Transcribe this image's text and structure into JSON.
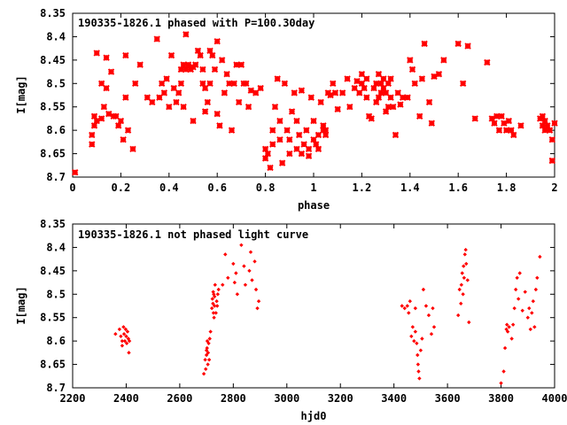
{
  "chart_data": [
    {
      "type": "scatter",
      "title": "190335-1826.1 phased with P=100.30day",
      "xlabel": "phase",
      "ylabel": "I[mag]",
      "xlim": [
        0,
        2
      ],
      "ylim": [
        8.35,
        8.7
      ],
      "y_inverted": true,
      "grid": false,
      "marker": "star",
      "color": "#ff0000",
      "xticks": [
        "0",
        "0.2",
        "0.4",
        "0.6",
        "0.8",
        "1",
        "1.2",
        "1.4",
        "1.6",
        "1.8",
        "2"
      ],
      "yticks": [
        "8.35",
        "8.4",
        "8.45",
        "8.5",
        "8.55",
        "8.6",
        "8.65",
        "8.7"
      ],
      "points": [
        [
          0.01,
          8.69
        ],
        [
          0.08,
          8.63
        ],
        [
          0.08,
          8.61
        ],
        [
          0.09,
          8.59
        ],
        [
          0.09,
          8.57
        ],
        [
          0.1,
          8.58
        ],
        [
          0.1,
          8.435
        ],
        [
          0.12,
          8.5
        ],
        [
          0.12,
          8.575
        ],
        [
          0.13,
          8.55
        ],
        [
          0.14,
          8.445
        ],
        [
          0.14,
          8.51
        ],
        [
          0.15,
          8.565
        ],
        [
          0.16,
          8.475
        ],
        [
          0.17,
          8.57
        ],
        [
          0.18,
          8.57
        ],
        [
          0.19,
          8.59
        ],
        [
          0.2,
          8.58
        ],
        [
          0.21,
          8.62
        ],
        [
          0.22,
          8.44
        ],
        [
          0.22,
          8.53
        ],
        [
          0.23,
          8.6
        ],
        [
          0.25,
          8.64
        ],
        [
          0.26,
          8.5
        ],
        [
          0.28,
          8.46
        ],
        [
          0.31,
          8.53
        ],
        [
          0.33,
          8.54
        ],
        [
          0.35,
          8.405
        ],
        [
          0.36,
          8.53
        ],
        [
          0.37,
          8.5
        ],
        [
          0.38,
          8.52
        ],
        [
          0.39,
          8.49
        ],
        [
          0.4,
          8.55
        ],
        [
          0.41,
          8.44
        ],
        [
          0.42,
          8.51
        ],
        [
          0.43,
          8.54
        ],
        [
          0.44,
          8.52
        ],
        [
          0.45,
          8.47
        ],
        [
          0.45,
          8.5
        ],
        [
          0.46,
          8.46
        ],
        [
          0.46,
          8.55
        ],
        [
          0.47,
          8.395
        ],
        [
          0.47,
          8.47
        ],
        [
          0.48,
          8.46
        ],
        [
          0.49,
          8.47
        ],
        [
          0.5,
          8.465
        ],
        [
          0.5,
          8.58
        ],
        [
          0.51,
          8.46
        ],
        [
          0.52,
          8.43
        ],
        [
          0.53,
          8.44
        ],
        [
          0.54,
          8.47
        ],
        [
          0.54,
          8.5
        ],
        [
          0.55,
          8.51
        ],
        [
          0.55,
          8.56
        ],
        [
          0.56,
          8.54
        ],
        [
          0.57,
          8.43
        ],
        [
          0.57,
          8.5
        ],
        [
          0.58,
          8.44
        ],
        [
          0.59,
          8.47
        ],
        [
          0.6,
          8.41
        ],
        [
          0.6,
          8.565
        ],
        [
          0.61,
          8.59
        ],
        [
          0.62,
          8.45
        ],
        [
          0.63,
          8.52
        ],
        [
          0.64,
          8.48
        ],
        [
          0.65,
          8.5
        ],
        [
          0.66,
          8.6
        ],
        [
          0.67,
          8.5
        ],
        [
          0.68,
          8.46
        ],
        [
          0.69,
          8.54
        ],
        [
          0.7,
          8.46
        ],
        [
          0.71,
          8.5
        ],
        [
          0.72,
          8.5
        ],
        [
          0.73,
          8.55
        ],
        [
          0.74,
          8.515
        ],
        [
          0.76,
          8.52
        ],
        [
          0.78,
          8.51
        ],
        [
          0.8,
          8.64
        ],
        [
          0.8,
          8.66
        ],
        [
          0.81,
          8.65
        ],
        [
          0.82,
          8.68
        ],
        [
          0.83,
          8.6
        ],
        [
          0.83,
          8.63
        ],
        [
          0.84,
          8.55
        ],
        [
          0.85,
          8.49
        ],
        [
          0.86,
          8.58
        ],
        [
          0.86,
          8.62
        ],
        [
          0.87,
          8.67
        ],
        [
          0.88,
          8.5
        ],
        [
          0.89,
          8.6
        ],
        [
          0.9,
          8.62
        ],
        [
          0.9,
          8.65
        ],
        [
          0.91,
          8.56
        ],
        [
          0.92,
          8.52
        ],
        [
          0.93,
          8.58
        ],
        [
          0.93,
          8.64
        ],
        [
          0.94,
          8.61
        ],
        [
          0.95,
          8.515
        ],
        [
          0.95,
          8.65
        ],
        [
          0.96,
          8.63
        ],
        [
          0.97,
          8.6
        ],
        [
          0.98,
          8.64
        ],
        [
          0.98,
          8.655
        ],
        [
          0.99,
          8.53
        ],
        [
          1.0,
          8.58
        ],
        [
          1.0,
          8.62
        ],
        [
          1.01,
          8.63
        ],
        [
          1.02,
          8.61
        ],
        [
          1.02,
          8.64
        ],
        [
          1.03,
          8.54
        ],
        [
          1.04,
          8.59
        ],
        [
          1.04,
          8.6
        ],
        [
          1.05,
          8.6
        ],
        [
          1.05,
          8.61
        ],
        [
          1.06,
          8.52
        ],
        [
          1.07,
          8.525
        ],
        [
          1.08,
          8.5
        ],
        [
          1.09,
          8.52
        ],
        [
          1.1,
          8.555
        ],
        [
          1.12,
          8.52
        ],
        [
          1.14,
          8.49
        ],
        [
          1.15,
          8.55
        ],
        [
          1.17,
          8.51
        ],
        [
          1.18,
          8.495
        ],
        [
          1.19,
          8.52
        ],
        [
          1.2,
          8.48
        ],
        [
          1.2,
          8.5
        ],
        [
          1.21,
          8.51
        ],
        [
          1.22,
          8.49
        ],
        [
          1.22,
          8.53
        ],
        [
          1.23,
          8.57
        ],
        [
          1.24,
          8.575
        ],
        [
          1.25,
          8.51
        ],
        [
          1.26,
          8.5
        ],
        [
          1.26,
          8.54
        ],
        [
          1.27,
          8.53
        ],
        [
          1.27,
          8.48
        ],
        [
          1.28,
          8.5
        ],
        [
          1.28,
          8.52
        ],
        [
          1.29,
          8.51
        ],
        [
          1.29,
          8.49
        ],
        [
          1.3,
          8.56
        ],
        [
          1.3,
          8.52
        ],
        [
          1.31,
          8.55
        ],
        [
          1.31,
          8.5
        ],
        [
          1.32,
          8.53
        ],
        [
          1.32,
          8.49
        ],
        [
          1.33,
          8.55
        ],
        [
          1.34,
          8.61
        ],
        [
          1.35,
          8.52
        ],
        [
          1.36,
          8.545
        ],
        [
          1.37,
          8.53
        ],
        [
          1.39,
          8.53
        ],
        [
          1.4,
          8.45
        ],
        [
          1.41,
          8.47
        ],
        [
          1.42,
          8.5
        ],
        [
          1.44,
          8.57
        ],
        [
          1.45,
          8.49
        ],
        [
          1.46,
          8.415
        ],
        [
          1.48,
          8.54
        ],
        [
          1.49,
          8.585
        ],
        [
          1.5,
          8.485
        ],
        [
          1.52,
          8.48
        ],
        [
          1.54,
          8.45
        ],
        [
          1.6,
          8.415
        ],
        [
          1.62,
          8.5
        ],
        [
          1.64,
          8.42
        ],
        [
          1.67,
          8.575
        ],
        [
          1.72,
          8.455
        ],
        [
          1.74,
          8.575
        ],
        [
          1.75,
          8.585
        ],
        [
          1.76,
          8.57
        ],
        [
          1.77,
          8.6
        ],
        [
          1.78,
          8.57
        ],
        [
          1.79,
          8.585
        ],
        [
          1.8,
          8.6
        ],
        [
          1.81,
          8.58
        ],
        [
          1.82,
          8.6
        ],
        [
          1.83,
          8.61
        ],
        [
          1.86,
          8.59
        ],
        [
          1.94,
          8.575
        ],
        [
          1.95,
          8.57
        ],
        [
          1.95,
          8.59
        ],
        [
          1.96,
          8.58
        ],
        [
          1.96,
          8.6
        ],
        [
          1.97,
          8.59
        ],
        [
          1.98,
          8.6
        ],
        [
          1.99,
          8.62
        ],
        [
          1.99,
          8.665
        ],
        [
          2.0,
          8.585
        ]
      ]
    },
    {
      "type": "scatter",
      "title": "190335-1826.1 not phased light curve",
      "xlabel": "hjd0",
      "ylabel": "I[mag]",
      "xlim": [
        2200,
        4000
      ],
      "ylim": [
        8.35,
        8.7
      ],
      "y_inverted": true,
      "grid": false,
      "marker": "diamond",
      "color": "#ff0000",
      "xticks": [
        "2200",
        "2400",
        "2600",
        "2800",
        "3000",
        "3200",
        "3400",
        "3600",
        "3800",
        "4000"
      ],
      "yticks": [
        "8.35",
        "8.4",
        "8.45",
        "8.5",
        "8.55",
        "8.6",
        "8.65",
        "8.7"
      ],
      "points": [
        [
          2360,
          8.585
        ],
        [
          2375,
          8.575
        ],
        [
          2380,
          8.59
        ],
        [
          2385,
          8.6
        ],
        [
          2385,
          8.61
        ],
        [
          2390,
          8.57
        ],
        [
          2392,
          8.585
        ],
        [
          2395,
          8.6
        ],
        [
          2398,
          8.575
        ],
        [
          2400,
          8.59
        ],
        [
          2402,
          8.605
        ],
        [
          2405,
          8.58
        ],
        [
          2408,
          8.595
        ],
        [
          2410,
          8.625
        ],
        [
          2412,
          8.6
        ],
        [
          2690,
          8.67
        ],
        [
          2695,
          8.64
        ],
        [
          2697,
          8.66
        ],
        [
          2700,
          8.63
        ],
        [
          2700,
          8.62
        ],
        [
          2702,
          8.615
        ],
        [
          2703,
          8.6
        ],
        [
          2705,
          8.65
        ],
        [
          2706,
          8.625
        ],
        [
          2708,
          8.605
        ],
        [
          2710,
          8.64
        ],
        [
          2712,
          8.595
        ],
        [
          2715,
          8.58
        ],
        [
          2720,
          8.53
        ],
        [
          2722,
          8.51
        ],
        [
          2724,
          8.52
        ],
        [
          2725,
          8.495
        ],
        [
          2726,
          8.54
        ],
        [
          2727,
          8.5
        ],
        [
          2728,
          8.55
        ],
        [
          2730,
          8.505
        ],
        [
          2730,
          8.525
        ],
        [
          2732,
          8.48
        ],
        [
          2735,
          8.54
        ],
        [
          2738,
          8.515
        ],
        [
          2740,
          8.525
        ],
        [
          2742,
          8.5
        ],
        [
          2745,
          8.49
        ],
        [
          2760,
          8.48
        ],
        [
          2770,
          8.415
        ],
        [
          2780,
          8.465
        ],
        [
          2800,
          8.435
        ],
        [
          2805,
          8.475
        ],
        [
          2810,
          8.455
        ],
        [
          2815,
          8.5
        ],
        [
          2830,
          8.395
        ],
        [
          2840,
          8.44
        ],
        [
          2845,
          8.48
        ],
        [
          2860,
          8.45
        ],
        [
          2865,
          8.41
        ],
        [
          2870,
          8.47
        ],
        [
          2880,
          8.43
        ],
        [
          2885,
          8.49
        ],
        [
          2890,
          8.53
        ],
        [
          2895,
          8.515
        ],
        [
          3430,
          8.525
        ],
        [
          3440,
          8.53
        ],
        [
          3450,
          8.525
        ],
        [
          3455,
          8.54
        ],
        [
          3460,
          8.515
        ],
        [
          3465,
          8.59
        ],
        [
          3470,
          8.57
        ],
        [
          3475,
          8.6
        ],
        [
          3480,
          8.53
        ],
        [
          3480,
          8.58
        ],
        [
          3485,
          8.605
        ],
        [
          3488,
          8.63
        ],
        [
          3490,
          8.65
        ],
        [
          3492,
          8.665
        ],
        [
          3495,
          8.68
        ],
        [
          3500,
          8.62
        ],
        [
          3505,
          8.595
        ],
        [
          3510,
          8.49
        ],
        [
          3520,
          8.525
        ],
        [
          3530,
          8.545
        ],
        [
          3540,
          8.585
        ],
        [
          3545,
          8.53
        ],
        [
          3550,
          8.57
        ],
        [
          3640,
          8.545
        ],
        [
          3645,
          8.49
        ],
        [
          3650,
          8.52
        ],
        [
          3652,
          8.48
        ],
        [
          3655,
          8.455
        ],
        [
          3658,
          8.5
        ],
        [
          3660,
          8.44
        ],
        [
          3662,
          8.465
        ],
        [
          3665,
          8.415
        ],
        [
          3668,
          8.405
        ],
        [
          3670,
          8.435
        ],
        [
          3675,
          8.47
        ],
        [
          3680,
          8.56
        ],
        [
          3800,
          8.69
        ],
        [
          3810,
          8.665
        ],
        [
          3815,
          8.615
        ],
        [
          3820,
          8.575
        ],
        [
          3822,
          8.565
        ],
        [
          3825,
          8.58
        ],
        [
          3830,
          8.57
        ],
        [
          3840,
          8.595
        ],
        [
          3845,
          8.565
        ],
        [
          3850,
          8.53
        ],
        [
          3855,
          8.49
        ],
        [
          3860,
          8.465
        ],
        [
          3865,
          8.51
        ],
        [
          3870,
          8.455
        ],
        [
          3880,
          8.535
        ],
        [
          3890,
          8.495
        ],
        [
          3900,
          8.55
        ],
        [
          3905,
          8.53
        ],
        [
          3910,
          8.575
        ],
        [
          3915,
          8.54
        ],
        [
          3920,
          8.515
        ],
        [
          3925,
          8.57
        ],
        [
          3930,
          8.49
        ],
        [
          3935,
          8.465
        ],
        [
          3945,
          8.42
        ]
      ]
    }
  ]
}
